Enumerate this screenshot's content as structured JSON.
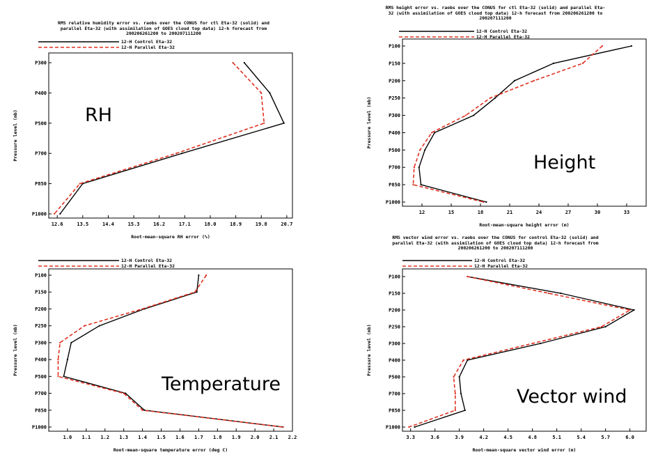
{
  "legend": {
    "control": "12-H Control Eta-32",
    "parallel": "12-H Parallel Eta-32"
  },
  "colors": {
    "control": "#000000",
    "parallel": "#e03020"
  },
  "chart_data": [
    {
      "id": "rh",
      "type": "line",
      "title": "RMS relative humidity error vs. raobs over the CONUS for ctl Eta-32 (solid) and\nparallel Eta-32 (with assimilation of GOES cloud top data) 12-h forecast from\n200206261200 to 200207111200",
      "big_label": "RH",
      "xlabel": "Root-mean-square RH error (%)",
      "ylabel": "Pressure level (mb)",
      "xlim": [
        12.3,
        20.9
      ],
      "xticks": [
        "12.6",
        "13.5",
        "14.4",
        "15.3",
        "16.2",
        "17.1",
        "18.0",
        "18.9",
        "19.8",
        "20.7"
      ],
      "yticks": [
        "P300",
        "P400",
        "P500",
        "P700",
        "P850",
        "P1000"
      ],
      "series": [
        {
          "key": "control",
          "values": [
            19.2,
            20.1,
            20.6,
            17.0,
            13.5,
            12.7
          ]
        },
        {
          "key": "parallel",
          "values": [
            18.8,
            19.8,
            19.9,
            16.8,
            13.4,
            12.5
          ]
        }
      ]
    },
    {
      "id": "height",
      "type": "line",
      "title": "RMS height error vs. raobs over the CONUS for ctl Eta-32 (solid) and parallel Eta-\n32 (with assimilation of GOES cloud top data) 12-h forecast from 200206261200 to\n200207111200",
      "big_label": "Height",
      "xlabel": "Root-mean-square height error (m)",
      "ylabel": "Pressure level (mb)",
      "xlim": [
        10.0,
        35.0
      ],
      "xticks": [
        "12",
        "15",
        "18",
        "21",
        "24",
        "27",
        "30",
        "33"
      ],
      "yticks": [
        "P100",
        "P150",
        "P200",
        "P250",
        "P300",
        "P400",
        "P500",
        "P700",
        "P850",
        "P1000"
      ],
      "series": [
        {
          "key": "control",
          "values": [
            33.5,
            25.5,
            21.5,
            19.5,
            17.3,
            13.3,
            12.3,
            11.7,
            11.9,
            18.6
          ]
        },
        {
          "key": "parallel",
          "values": [
            30.5,
            28.5,
            23.5,
            19.0,
            16.5,
            13.0,
            11.8,
            11.2,
            11.1,
            18.3
          ]
        }
      ]
    },
    {
      "id": "temperature",
      "type": "line",
      "title": "",
      "big_label": "Temperature",
      "xlabel": "Root-mean-square temperature error (deg C)",
      "ylabel": "Pressure level (mb)",
      "xlim": [
        0.9,
        2.2
      ],
      "xticks": [
        "1.0",
        "1.1",
        "1.2",
        "1.3",
        "1.4",
        "1.5",
        "1.6",
        "1.7",
        "1.8",
        "1.9",
        "2.0",
        "2.1",
        "2.2"
      ],
      "yticks": [
        "P100",
        "P150",
        "P200",
        "P250",
        "P300",
        "P400",
        "P500",
        "P700",
        "P850",
        "P1000"
      ],
      "series": [
        {
          "key": "control",
          "values": [
            1.7,
            1.69,
            1.41,
            1.17,
            1.02,
            1.0,
            0.98,
            1.31,
            1.41,
            2.15
          ]
        },
        {
          "key": "parallel",
          "values": [
            1.74,
            1.68,
            1.4,
            1.09,
            0.96,
            0.95,
            0.95,
            1.3,
            1.4,
            2.15
          ]
        }
      ]
    },
    {
      "id": "wind",
      "type": "line",
      "title": "RMS vector wind error vs. raobs over the CONUS for control Eta-32 (solid) and\nparallel Eta-32 (with assimilation of GOES cloud top data) 12-h forecast from\n200206261200 to 200207111200",
      "big_label": "Vector wind",
      "xlabel": "Root-mean-square vector wind error (m)",
      "ylabel": "Pressure level (mb)",
      "xlim": [
        3.2,
        6.2
      ],
      "xticks": [
        "3.3",
        "3.6",
        "3.9",
        "4.2",
        "4.5",
        "4.8",
        "5.1",
        "5.4",
        "5.7",
        "6.0"
      ],
      "yticks": [
        "P100",
        "P150",
        "P200",
        "P250",
        "P300",
        "P400",
        "P500",
        "P700",
        "P850",
        "P1000"
      ],
      "series": [
        {
          "key": "control",
          "values": [
            4.0,
            5.15,
            6.05,
            5.7,
            4.9,
            4.0,
            3.9,
            3.92,
            3.97,
            3.35
          ]
        },
        {
          "key": "parallel",
          "values": [
            4.0,
            5.0,
            6.0,
            5.65,
            4.8,
            3.95,
            3.83,
            3.85,
            3.85,
            3.28
          ]
        }
      ]
    }
  ]
}
